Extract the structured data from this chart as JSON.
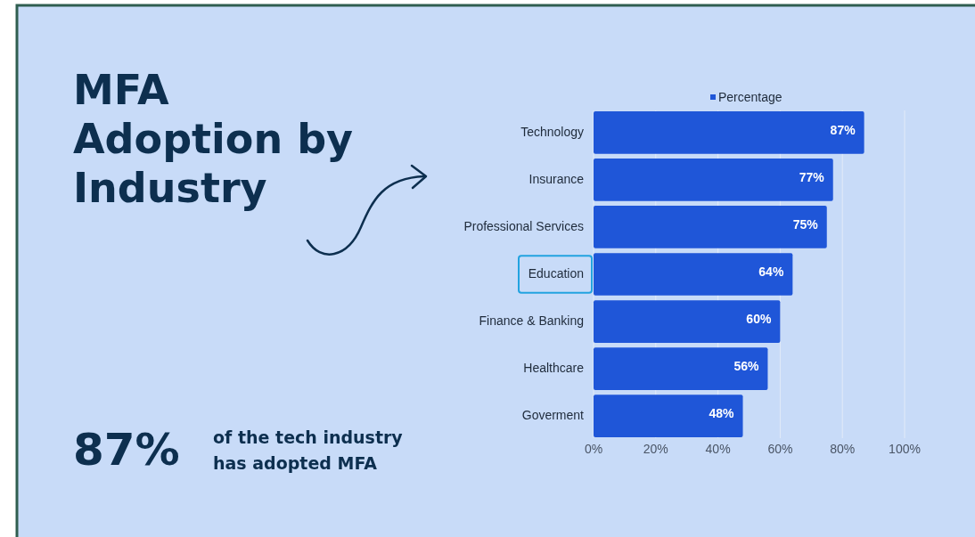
{
  "chart_data": {
    "type": "bar",
    "orientation": "horizontal",
    "title": "MFA Adoption by Industry",
    "categories": [
      "Technology",
      "Insurance",
      "Professional Services",
      "Education",
      "Finance & Banking",
      "Healthcare",
      "Goverment"
    ],
    "series": [
      {
        "name": "Percentage",
        "color": "#1f56d8",
        "values": [
          87,
          77,
          75,
          64,
          60,
          56,
          48
        ],
        "value_labels": [
          "87%",
          "77%",
          "75%",
          "64%",
          "60%",
          "56%",
          "48%"
        ]
      }
    ],
    "xlim": [
      0,
      100
    ],
    "xticks": [
      {
        "value": 0,
        "label": "0%"
      },
      {
        "value": 20,
        "label": "20%"
      },
      {
        "value": 40,
        "label": "40%"
      },
      {
        "value": 60,
        "label": "60%"
      },
      {
        "value": 80,
        "label": "80%"
      },
      {
        "value": 100,
        "label": "100%"
      }
    ],
    "grid": "x",
    "legend": "top",
    "annotations": [
      "87%",
      "of the tech industry has adopted MFA"
    ]
  }
}
